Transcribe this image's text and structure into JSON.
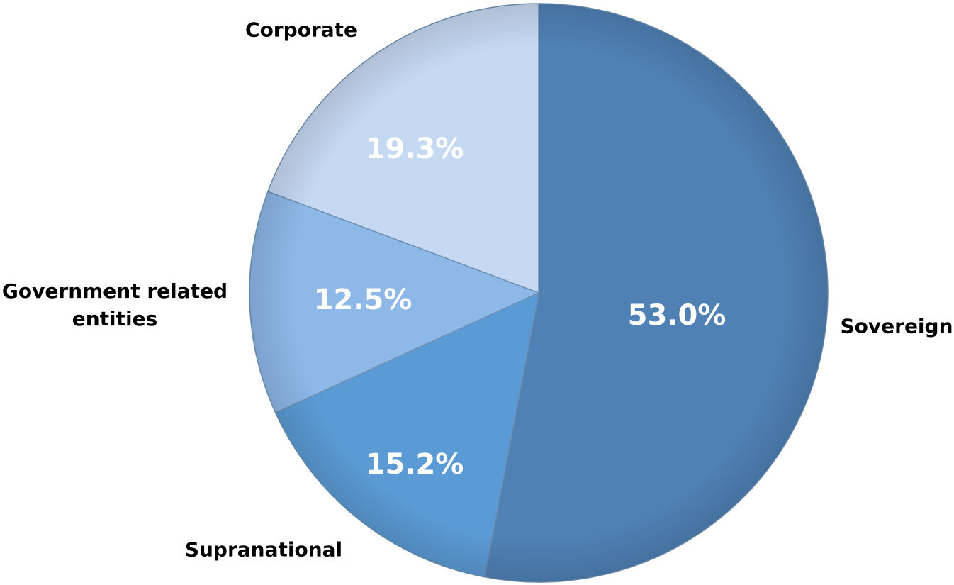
{
  "chart_data": {
    "type": "pie",
    "categories": [
      "Sovereign",
      "Supranational",
      "Government related entities",
      "Corporate"
    ],
    "values": [
      53.0,
      15.2,
      12.5,
      19.3
    ],
    "value_labels": [
      "53.0%",
      "15.2%",
      "12.5%",
      "19.3%"
    ],
    "colors": [
      "#4f81b5",
      "#5b9bd5",
      "#8db8e8",
      "#c6d9f3"
    ]
  }
}
